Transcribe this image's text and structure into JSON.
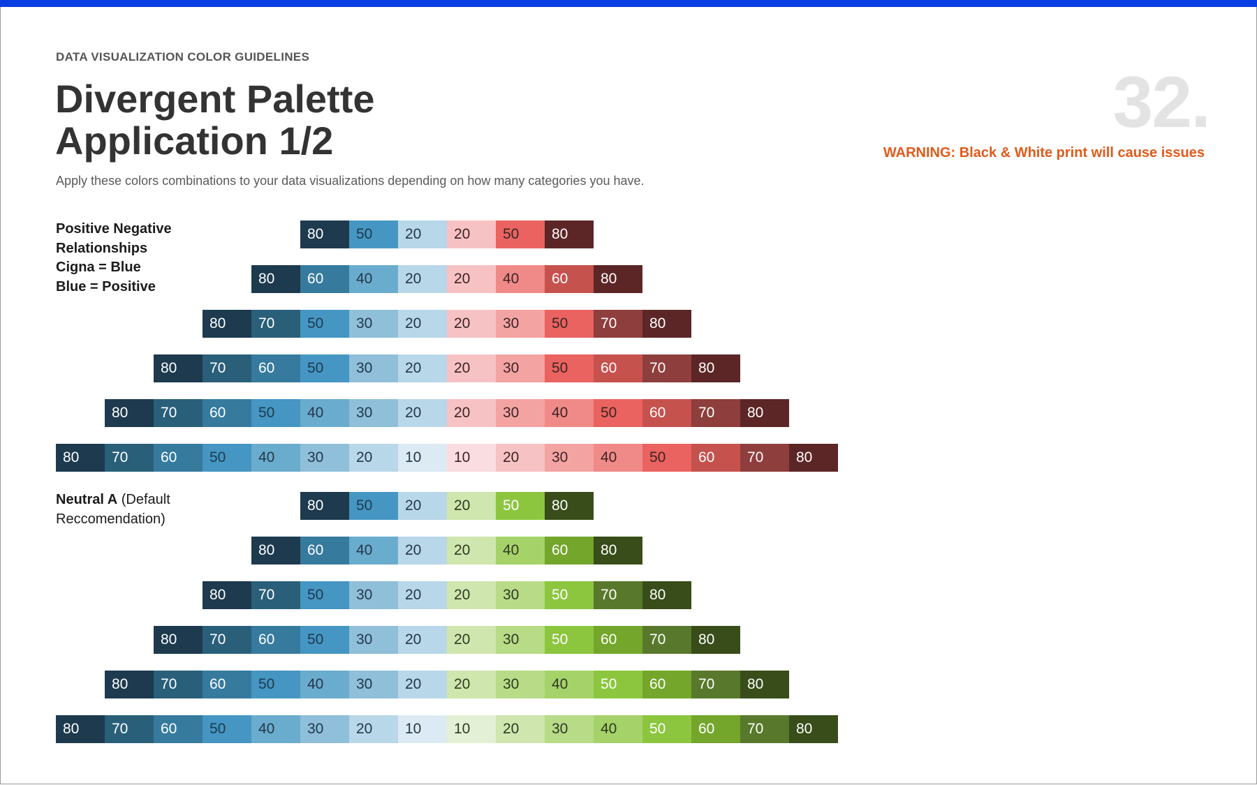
{
  "header": {
    "eyebrow": "DATA VISUALIZATION COLOR GUIDELINES",
    "title_line1": "Divergent Palette",
    "title_line2": "Application 1/2",
    "subtitle": "Apply these colors combinations to your data visualizations depending on how many categories you have.",
    "page_number": "32.",
    "warning": "WARNING: Black & White print will cause issues"
  },
  "colors": {
    "accent_bar": "#0b3ee0",
    "warning": "#e05a19",
    "blue": {
      "10": "#dceaf3",
      "20": "#b8d7e8",
      "30": "#8fbfd9",
      "40": "#6aaccd",
      "50": "#4596c2",
      "60": "#367a9e",
      "70": "#2a5f7a",
      "80": "#1d3a4e"
    },
    "red": {
      "10": "#fadde0",
      "20": "#f7c2c4",
      "30": "#f4a3a3",
      "40": "#f08a88",
      "50": "#ea6360",
      "60": "#c6524e",
      "70": "#8e3e3c",
      "80": "#5c2626"
    },
    "green": {
      "10": "#e4f0d5",
      "20": "#cfe6ae",
      "30": "#b8db87",
      "40": "#a6d26a",
      "50": "#8cc63f",
      "60": "#73a62b",
      "70": "#58792b",
      "80": "#384d19"
    }
  },
  "sections": [
    {
      "id": "posneg",
      "label_lines": [
        {
          "bold": "Positive Negative",
          "normal": ""
        },
        {
          "bold": "Relationships",
          "normal": ""
        },
        {
          "bold": "Cigna = Blue",
          "normal": ""
        },
        {
          "bold": "Blue = Positive",
          "normal": ""
        }
      ],
      "right_palette": "red",
      "ramps": [
        [
          "80",
          "50",
          "20",
          "20",
          "50",
          "80"
        ],
        [
          "80",
          "60",
          "40",
          "20",
          "20",
          "40",
          "60",
          "80"
        ],
        [
          "80",
          "70",
          "50",
          "30",
          "20",
          "20",
          "30",
          "50",
          "70",
          "80"
        ],
        [
          "80",
          "70",
          "60",
          "50",
          "30",
          "20",
          "20",
          "30",
          "50",
          "60",
          "70",
          "80"
        ],
        [
          "80",
          "70",
          "60",
          "50",
          "40",
          "30",
          "20",
          "20",
          "30",
          "40",
          "50",
          "60",
          "70",
          "80"
        ],
        [
          "80",
          "70",
          "60",
          "50",
          "40",
          "30",
          "20",
          "10",
          "10",
          "20",
          "30",
          "40",
          "50",
          "60",
          "70",
          "80"
        ]
      ]
    },
    {
      "id": "neutral",
      "label_lines": [
        {
          "bold": "Neutral A",
          "normal": " (Default"
        },
        {
          "bold": "",
          "normal": "Reccomendation)"
        }
      ],
      "right_palette": "green",
      "ramps": [
        [
          "80",
          "50",
          "20",
          "20",
          "50",
          "80"
        ],
        [
          "80",
          "60",
          "40",
          "20",
          "20",
          "40",
          "60",
          "80"
        ],
        [
          "80",
          "70",
          "50",
          "30",
          "20",
          "20",
          "30",
          "50",
          "70",
          "80"
        ],
        [
          "80",
          "70",
          "60",
          "50",
          "30",
          "20",
          "20",
          "30",
          "50",
          "60",
          "70",
          "80"
        ],
        [
          "80",
          "70",
          "60",
          "50",
          "40",
          "30",
          "20",
          "20",
          "30",
          "40",
          "50",
          "60",
          "70",
          "80"
        ],
        [
          "80",
          "70",
          "60",
          "50",
          "40",
          "30",
          "20",
          "10",
          "10",
          "20",
          "30",
          "40",
          "50",
          "60",
          "70",
          "80"
        ]
      ]
    }
  ]
}
